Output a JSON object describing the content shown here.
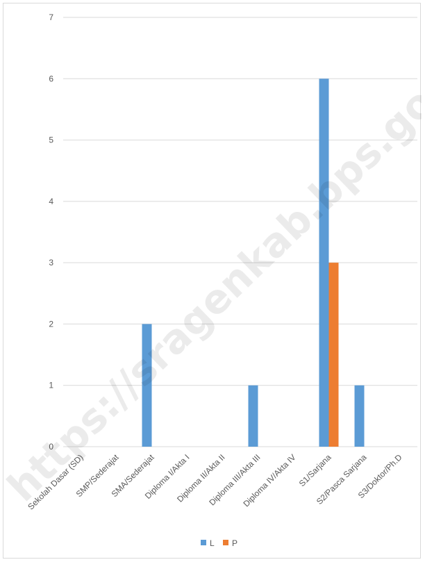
{
  "chart_data": {
    "type": "bar",
    "categories": [
      "Sekolah Dasar (SD)",
      "SMP/Sederajat",
      "SMA/Sederajat",
      "Diploma I/Akta I",
      "Diploma II/Akta II",
      "Diploma III/Akta III",
      "Diploma IV/Akta IV",
      "S1/Sarjana",
      "S2/Pasca Sarjana",
      "S3/Doktor/Ph.D"
    ],
    "series": [
      {
        "name": "L",
        "color": "#5b9bd5",
        "values": [
          0,
          0,
          2,
          0,
          0,
          1,
          0,
          6,
          1,
          0
        ]
      },
      {
        "name": "P",
        "color": "#ed7d31",
        "values": [
          0,
          0,
          0,
          0,
          0,
          0,
          0,
          3,
          0,
          0
        ]
      }
    ],
    "yticks": [
      0,
      1,
      2,
      3,
      4,
      5,
      6,
      7
    ],
    "ylim": [
      0,
      7
    ],
    "grid": true,
    "legend_position": "bottom",
    "title": "",
    "xlabel": "",
    "ylabel": ""
  },
  "watermark": "https://sragenkab.bps.go.id",
  "colors": {
    "gridline": "#d9d9d9",
    "text": "#595959"
  }
}
